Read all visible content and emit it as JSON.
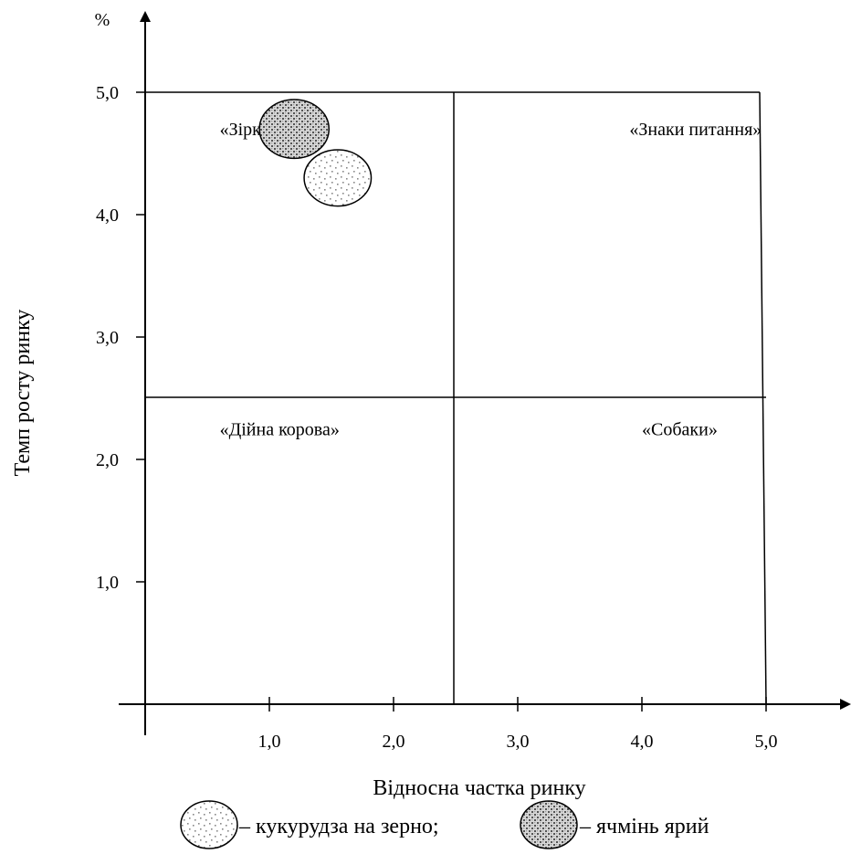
{
  "chart_data": {
    "type": "scatter",
    "title": "",
    "ylabel": "Темп росту ринку",
    "xlabel": "Відносна частка ринку",
    "y_unit": "%",
    "xlim": [
      0,
      5
    ],
    "ylim": [
      0,
      5
    ],
    "x_ticks": [
      1,
      2,
      3,
      4,
      5
    ],
    "x_tick_labels": [
      "1,0",
      "2,0",
      "3,0",
      "4,0",
      "5,0"
    ],
    "y_ticks": [
      1,
      2,
      3,
      4,
      5
    ],
    "y_tick_labels": [
      "1,0",
      "2,0",
      "3,0",
      "4,0",
      "5,0"
    ],
    "grid": false,
    "quadrant_split": {
      "x": 2.5,
      "y": 2.5
    },
    "quadrants": [
      {
        "label": "«Зірки»",
        "x": 0.6,
        "y": 4.7
      },
      {
        "label": "«Знаки питання»",
        "x": 3.9,
        "y": 4.7
      },
      {
        "label": "«Дійна корова»",
        "x": 0.6,
        "y": 2.25
      },
      {
        "label": "«Собаки»",
        "x": 4.0,
        "y": 2.25
      }
    ],
    "series": [
      {
        "key": "barley",
        "values": [
          {
            "x": 1.2,
            "y": 4.7
          }
        ],
        "pattern": "dense-dots",
        "rx": 0.28,
        "ry": 0.24
      },
      {
        "key": "corn",
        "values": [
          {
            "x": 1.55,
            "y": 4.3
          }
        ],
        "pattern": "sparse-dots",
        "rx": 0.27,
        "ry": 0.23
      }
    ],
    "legend": {
      "position": "bottom",
      "items": [
        {
          "series": "corn",
          "text": "– кукурудза на зерно;"
        },
        {
          "series": "barley",
          "text": "– ячмінь ярий"
        }
      ]
    }
  }
}
